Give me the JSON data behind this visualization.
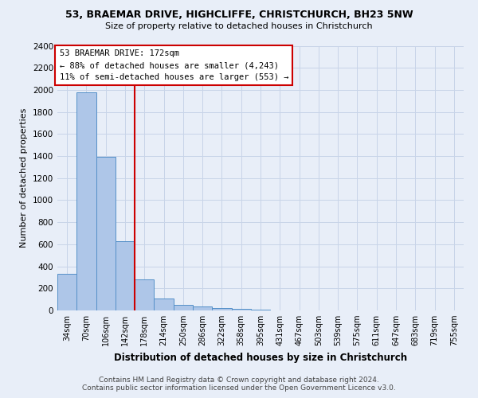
{
  "title1": "53, BRAEMAR DRIVE, HIGHCLIFFE, CHRISTCHURCH, BH23 5NW",
  "title2": "Size of property relative to detached houses in Christchurch",
  "xlabel": "Distribution of detached houses by size in Christchurch",
  "ylabel": "Number of detached properties",
  "footer1": "Contains HM Land Registry data © Crown copyright and database right 2024.",
  "footer2": "Contains public sector information licensed under the Open Government Licence v3.0.",
  "bin_labels": [
    "34sqm",
    "70sqm",
    "106sqm",
    "142sqm",
    "178sqm",
    "214sqm",
    "250sqm",
    "286sqm",
    "322sqm",
    "358sqm",
    "395sqm",
    "431sqm",
    "467sqm",
    "503sqm",
    "539sqm",
    "575sqm",
    "611sqm",
    "647sqm",
    "683sqm",
    "719sqm",
    "755sqm"
  ],
  "bar_heights": [
    330,
    1980,
    1390,
    630,
    280,
    110,
    50,
    35,
    25,
    15,
    10,
    0,
    0,
    0,
    0,
    0,
    0,
    0,
    0,
    0,
    0
  ],
  "bar_color": "#aec6e8",
  "bar_edge_color": "#5590c8",
  "vline_color": "#cc0000",
  "annotation_title": "53 BRAEMAR DRIVE: 172sqm",
  "annotation_line1": "← 88% of detached houses are smaller (4,243)",
  "annotation_line2": "11% of semi-detached houses are larger (553) →",
  "annotation_box_color": "white",
  "annotation_box_edge": "#cc0000",
  "ylim": [
    0,
    2400
  ],
  "yticks": [
    0,
    200,
    400,
    600,
    800,
    1000,
    1200,
    1400,
    1600,
    1800,
    2000,
    2200,
    2400
  ],
  "grid_color": "#c8d4e8",
  "background_color": "#e8eef8"
}
